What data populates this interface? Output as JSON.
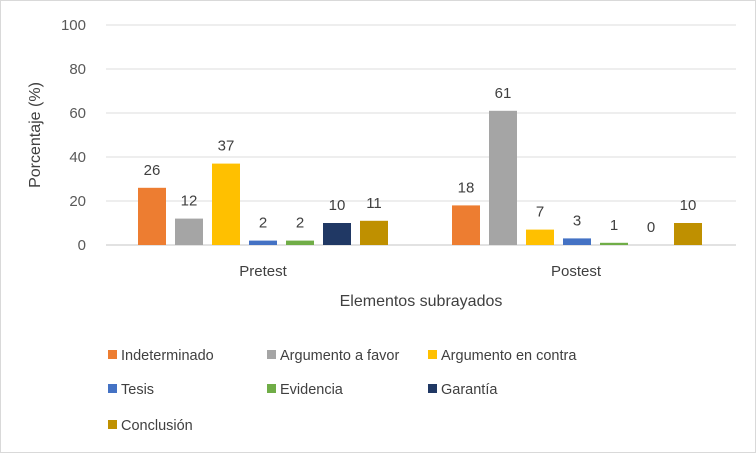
{
  "chart_data": {
    "type": "bar",
    "title": "",
    "xlabel": "Elementos subrayados",
    "ylabel": "Porcentaje (%)",
    "ylim": [
      0,
      100
    ],
    "yticks": [
      0,
      20,
      40,
      60,
      80,
      100
    ],
    "grid": true,
    "legend_position": "bottom",
    "categories": [
      "Pretest",
      "Postest"
    ],
    "series": [
      {
        "name": "Indeterminado",
        "color": "#ED7D31",
        "values": [
          26,
          18
        ]
      },
      {
        "name": "Argumento  a favor",
        "color": "#A5A5A5",
        "values": [
          12,
          61
        ]
      },
      {
        "name": "Argumento en contra",
        "color": "#FFC000",
        "values": [
          37,
          7
        ]
      },
      {
        "name": "Tesis",
        "color": "#4472C4",
        "values": [
          2,
          3
        ]
      },
      {
        "name": "Evidencia",
        "color": "#70AD47",
        "values": [
          2,
          1
        ]
      },
      {
        "name": "Garantía",
        "color": "#203864",
        "values": [
          10,
          0
        ]
      },
      {
        "name": "Conclusión",
        "color": "#BF9000",
        "values": [
          11,
          10
        ]
      }
    ]
  }
}
